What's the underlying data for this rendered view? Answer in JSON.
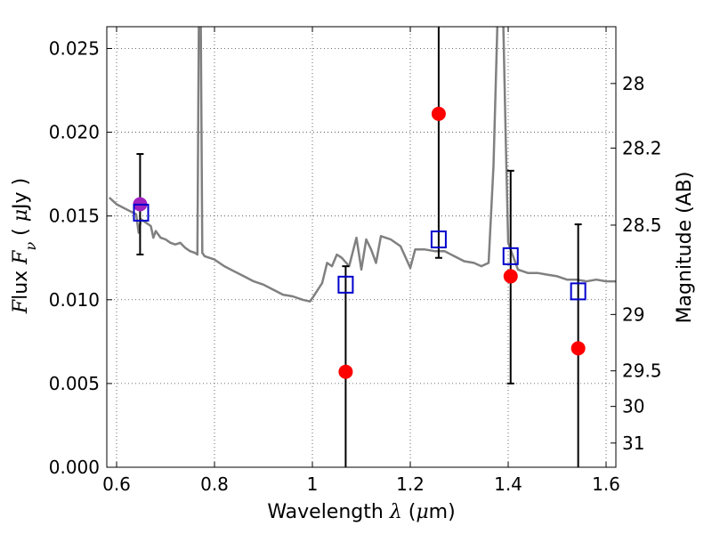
{
  "chart_data": {
    "type": "scatter",
    "xlabel": "Wavelength  λ (μm)",
    "ylabel": "Flux  Fν  ( μJy )",
    "y2label": "Magnitude (AB)",
    "xlim": [
      0.58,
      1.62
    ],
    "ylim": [
      0.0,
      0.0263
    ],
    "grid": true,
    "x_ticks": [
      {
        "value": 0.6,
        "label": "0.6"
      },
      {
        "value": 0.8,
        "label": "0.8"
      },
      {
        "value": 1.0,
        "label": "1"
      },
      {
        "value": 1.2,
        "label": "1.2"
      },
      {
        "value": 1.4,
        "label": "1.4"
      },
      {
        "value": 1.6,
        "label": "1.6"
      }
    ],
    "y_ticks": [
      {
        "value": 0.0,
        "label": "0.000"
      },
      {
        "value": 0.005,
        "label": "0.005"
      },
      {
        "value": 0.01,
        "label": "0.010"
      },
      {
        "value": 0.015,
        "label": "0.015"
      },
      {
        "value": 0.02,
        "label": "0.020"
      },
      {
        "value": 0.025,
        "label": "0.025"
      }
    ],
    "y2_ticks": [
      {
        "value": 28.0,
        "label": "28"
      },
      {
        "value": 28.2,
        "label": "28.2"
      },
      {
        "value": 28.5,
        "label": "28.5"
      },
      {
        "value": 29.0,
        "label": "29"
      },
      {
        "value": 29.5,
        "label": "29.5"
      },
      {
        "value": 30.0,
        "label": "30"
      },
      {
        "value": 31.0,
        "label": "31"
      }
    ],
    "model_sed": {
      "color": "#808080",
      "points": [
        [
          0.585,
          0.0161
        ],
        [
          0.6,
          0.0157
        ],
        [
          0.62,
          0.0154
        ],
        [
          0.64,
          0.0151
        ],
        [
          0.645,
          0.014
        ],
        [
          0.65,
          0.0148
        ],
        [
          0.66,
          0.0146
        ],
        [
          0.67,
          0.0144
        ],
        [
          0.675,
          0.0137
        ],
        [
          0.68,
          0.0141
        ],
        [
          0.69,
          0.0137
        ],
        [
          0.7,
          0.0136
        ],
        [
          0.71,
          0.0134
        ],
        [
          0.72,
          0.0133
        ],
        [
          0.73,
          0.0134
        ],
        [
          0.74,
          0.0131
        ],
        [
          0.75,
          0.0129
        ],
        [
          0.76,
          0.0128
        ],
        [
          0.765,
          0.0127
        ],
        [
          0.768,
          0.0265
        ],
        [
          0.772,
          0.0265
        ],
        [
          0.775,
          0.0128
        ],
        [
          0.78,
          0.0126
        ],
        [
          0.8,
          0.0124
        ],
        [
          0.82,
          0.012
        ],
        [
          0.84,
          0.0117
        ],
        [
          0.86,
          0.0114
        ],
        [
          0.88,
          0.0111
        ],
        [
          0.9,
          0.0109
        ],
        [
          0.92,
          0.0106
        ],
        [
          0.94,
          0.0103
        ],
        [
          0.96,
          0.0102
        ],
        [
          0.98,
          0.01
        ],
        [
          0.995,
          0.0099
        ],
        [
          1.0,
          0.0101
        ],
        [
          1.02,
          0.011
        ],
        [
          1.03,
          0.0122
        ],
        [
          1.04,
          0.012
        ],
        [
          1.05,
          0.0127
        ],
        [
          1.06,
          0.0125
        ],
        [
          1.075,
          0.012
        ],
        [
          1.09,
          0.0137
        ],
        [
          1.1,
          0.0118
        ],
        [
          1.11,
          0.0136
        ],
        [
          1.12,
          0.013
        ],
        [
          1.13,
          0.0122
        ],
        [
          1.14,
          0.0138
        ],
        [
          1.16,
          0.0136
        ],
        [
          1.18,
          0.0132
        ],
        [
          1.2,
          0.0119
        ],
        [
          1.21,
          0.013
        ],
        [
          1.23,
          0.013
        ],
        [
          1.25,
          0.0129
        ],
        [
          1.27,
          0.0129
        ],
        [
          1.29,
          0.0126
        ],
        [
          1.31,
          0.0123
        ],
        [
          1.33,
          0.0122
        ],
        [
          1.345,
          0.012
        ],
        [
          1.36,
          0.0122
        ],
        [
          1.37,
          0.018
        ],
        [
          1.378,
          0.0265
        ],
        [
          1.39,
          0.0265
        ],
        [
          1.395,
          0.0195
        ],
        [
          1.4,
          0.0134
        ],
        [
          1.42,
          0.0118
        ],
        [
          1.44,
          0.0116
        ],
        [
          1.46,
          0.0116
        ],
        [
          1.48,
          0.0115
        ],
        [
          1.5,
          0.0114
        ],
        [
          1.52,
          0.0112
        ],
        [
          1.54,
          0.0112
        ],
        [
          1.56,
          0.0111
        ],
        [
          1.58,
          0.0112
        ],
        [
          1.6,
          0.0111
        ],
        [
          1.62,
          0.0111
        ]
      ]
    },
    "observed": {
      "color": "#ff0000",
      "points": [
        {
          "x": 0.648,
          "y": 0.0157,
          "err_low": 0.0127,
          "err_high": 0.0187
        },
        {
          "x": 1.068,
          "y": 0.0057,
          "err_low": 0.0,
          "err_high": 0.012
        },
        {
          "x": 1.258,
          "y": 0.0211,
          "err_low": 0.0125,
          "err_high": 0.0263
        },
        {
          "x": 1.405,
          "y": 0.0114,
          "err_low": 0.005,
          "err_high": 0.0177
        },
        {
          "x": 1.543,
          "y": 0.0071,
          "err_low": 0.0,
          "err_high": 0.0145
        }
      ]
    },
    "model_bands": {
      "color": "#0000cc",
      "points": [
        {
          "x": 0.65,
          "y": 0.0152
        },
        {
          "x": 1.068,
          "y": 0.0109
        },
        {
          "x": 1.258,
          "y": 0.0136
        },
        {
          "x": 1.405,
          "y": 0.0126
        },
        {
          "x": 1.543,
          "y": 0.0105
        }
      ]
    },
    "overlap_color": "#a020c0"
  }
}
